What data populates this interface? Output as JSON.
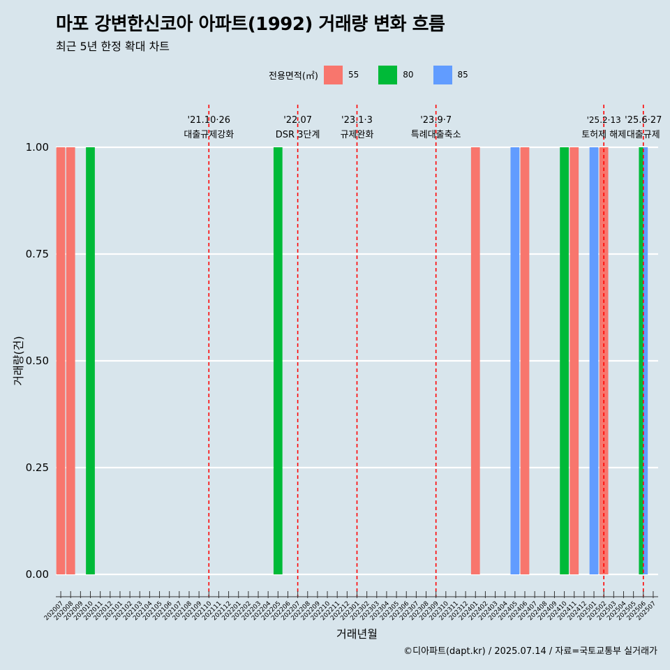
{
  "title": "마포 강변한신코아 아파트(1992) 거래량 변화 흐름",
  "subtitle": "최근 5년 한정 확대 차트",
  "footer": "©디아파트(dapt.kr) / 2025.07.14 / 자료=국토교통부 실거래가",
  "legend": {
    "title": "전용면적(㎡)",
    "items": [
      {
        "label": "55",
        "color": "#F8766D"
      },
      {
        "label": "80",
        "color": "#00BA38"
      },
      {
        "label": "85",
        "color": "#619CFF"
      }
    ]
  },
  "chart_data": {
    "type": "bar",
    "xlabel": "거래년월",
    "ylabel": "거래량(건)",
    "ylim": [
      0,
      1
    ],
    "yticks": [
      "0.00",
      "0.25",
      "0.50",
      "0.75",
      "1.00"
    ],
    "categories": [
      "202007",
      "202008",
      "202009",
      "202010",
      "202011",
      "202012",
      "202101",
      "202102",
      "202103",
      "202104",
      "202105",
      "202106",
      "202107",
      "202108",
      "202109",
      "202110",
      "202111",
      "202112",
      "202201",
      "202202",
      "202203",
      "202204",
      "202205",
      "202206",
      "202207",
      "202208",
      "202209",
      "202210",
      "202211",
      "202212",
      "202301",
      "202302",
      "202303",
      "202304",
      "202305",
      "202306",
      "202307",
      "202308",
      "202309",
      "202310",
      "202311",
      "202312",
      "202401",
      "202402",
      "202403",
      "202404",
      "202405",
      "202406",
      "202407",
      "202408",
      "202409",
      "202410",
      "202411",
      "202412",
      "202501",
      "202502",
      "202503",
      "202504",
      "202505",
      "202506",
      "202507"
    ],
    "series": [
      {
        "name": "55",
        "color": "#F8766D",
        "points": [
          {
            "x": "202007",
            "y": 1
          },
          {
            "x": "202008",
            "y": 1
          },
          {
            "x": "202401",
            "y": 1
          },
          {
            "x": "202406",
            "y": 1
          },
          {
            "x": "202411",
            "y": 1
          },
          {
            "x": "202502",
            "y": 1
          }
        ]
      },
      {
        "name": "80",
        "color": "#00BA38",
        "points": [
          {
            "x": "202010",
            "y": 1
          },
          {
            "x": "202205",
            "y": 1
          },
          {
            "x": "202410",
            "y": 1
          },
          {
            "x": "202506",
            "y": 1
          }
        ]
      },
      {
        "name": "85",
        "color": "#619CFF",
        "points": [
          {
            "x": "202405",
            "y": 1
          },
          {
            "x": "202501",
            "y": 1
          },
          {
            "x": "202506",
            "y": 1
          }
        ]
      }
    ],
    "annotations": [
      {
        "x": "202110",
        "date": "'21.10·26",
        "label": "대출규제강화"
      },
      {
        "x": "202207",
        "date": "'22.07",
        "label": "DSR 3단계"
      },
      {
        "x": "202301",
        "date": "'23.1·3",
        "label": "규제완화"
      },
      {
        "x": "202309",
        "date": "'23.9·7",
        "label": "특례대출축소"
      },
      {
        "x": "202502",
        "date": "'25.2·13",
        "label": "토허제 해제"
      },
      {
        "x": "202506",
        "date": "'25.6·27",
        "label": "대출규제"
      }
    ],
    "annotation_line_color": "#FF0000"
  }
}
